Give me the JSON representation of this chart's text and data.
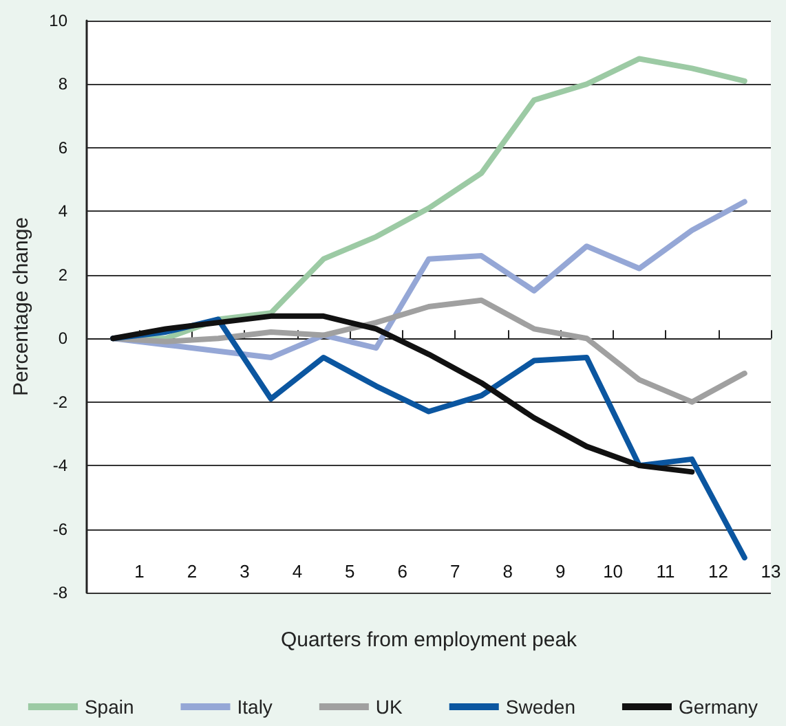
{
  "chart_data": {
    "type": "line",
    "xlabel": "Quarters from employment peak",
    "ylabel": "Percentage change",
    "x": [
      0.5,
      1.5,
      2.5,
      3.5,
      4.5,
      5.5,
      6.5,
      7.5,
      8.5,
      9.5,
      10.5,
      11.5,
      12.5
    ],
    "xlim": [
      0,
      13
    ],
    "xticks": [
      1,
      2,
      3,
      4,
      5,
      6,
      7,
      8,
      9,
      10,
      11,
      12,
      13
    ],
    "ylim": [
      -8,
      10
    ],
    "yticks": [
      -8,
      -6,
      -4,
      -2,
      0,
      2,
      4,
      6,
      8,
      10
    ],
    "grid": "y",
    "legend": "bottom",
    "marker": "none",
    "line_style": "solid",
    "series": [
      {
        "name": "Spain",
        "color": "#9ccaa4",
        "values": [
          0,
          0,
          0.6,
          0.8,
          2.5,
          3.2,
          4.1,
          5.2,
          7.5,
          8.0,
          8.8,
          8.5,
          8.1
        ]
      },
      {
        "name": "Italy",
        "color": "#95a7d6",
        "values": [
          0,
          -0.2,
          -0.4,
          -0.6,
          0.1,
          -0.3,
          2.5,
          2.6,
          1.5,
          2.9,
          2.2,
          3.4,
          4.3
        ]
      },
      {
        "name": "UK",
        "color": "#a0a0a0",
        "values": [
          0,
          -0.1,
          0.0,
          0.2,
          0.1,
          0.5,
          1.0,
          1.2,
          0.3,
          0.0,
          -1.3,
          -2.0,
          -1.1
        ]
      },
      {
        "name": "Sweden",
        "color": "#0b56a0",
        "values": [
          0,
          0.2,
          0.6,
          -1.9,
          -0.6,
          -1.5,
          -2.3,
          -1.8,
          -0.7,
          -0.6,
          -4.0,
          -3.8,
          -6.9
        ]
      },
      {
        "name": "Germany",
        "color": "#111111",
        "values": [
          0,
          0.3,
          0.5,
          0.7,
          0.7,
          0.3,
          -0.5,
          -1.4,
          -2.5,
          -3.4,
          -4.0,
          -4.2,
          null
        ]
      }
    ]
  }
}
